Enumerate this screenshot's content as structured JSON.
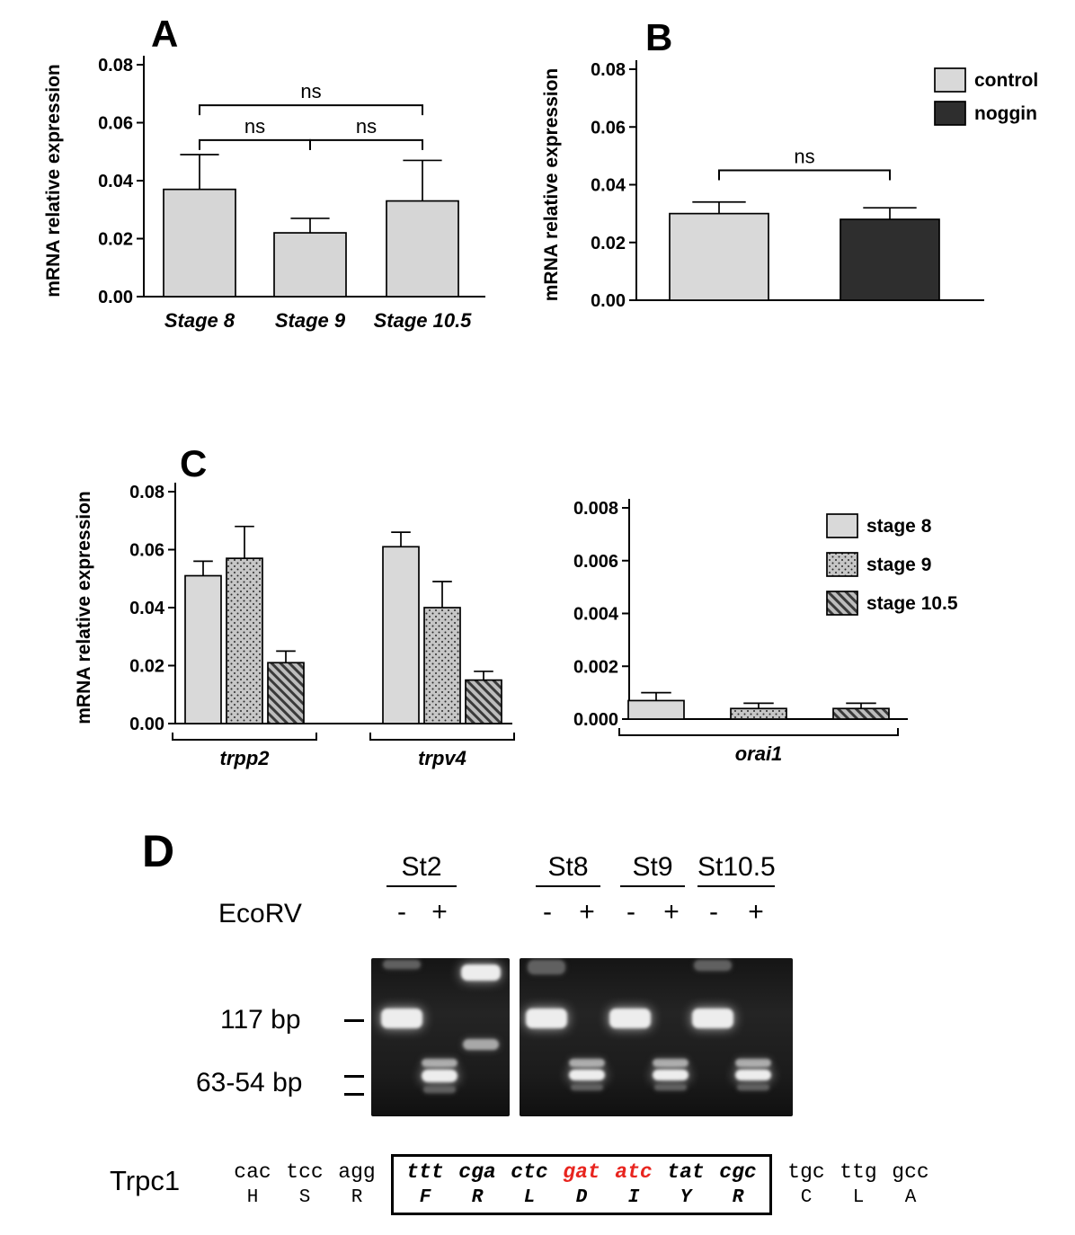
{
  "panels": {
    "a_label": "A",
    "b_label": "B",
    "c_label": "C",
    "d_label": "D"
  },
  "gel": {
    "stages": [
      "St2",
      "St8",
      "St9",
      "St10.5"
    ],
    "enzyme": "EcoRV",
    "signs": [
      "-",
      "+"
    ],
    "markers": {
      "m1": "117 bp",
      "m2": "63-54 bp"
    }
  },
  "sequence": {
    "gene": "Trpc1",
    "codons": [
      {
        "text": "cac",
        "aa": "H",
        "style": "plain"
      },
      {
        "text": "tcc",
        "aa": "S",
        "style": "plain"
      },
      {
        "text": "agg",
        "aa": "R",
        "style": "plain"
      },
      {
        "text": "ttt",
        "aa": "F",
        "style": "boxed"
      },
      {
        "text": "cga",
        "aa": "R",
        "style": "boxed"
      },
      {
        "text": "ctc",
        "aa": "L",
        "style": "boxed"
      },
      {
        "text": "gat",
        "aa": "D",
        "style": "boxed-red"
      },
      {
        "text": "atc",
        "aa": "I",
        "style": "boxed-red"
      },
      {
        "text": "tat",
        "aa": "Y",
        "style": "boxed"
      },
      {
        "text": "cgc",
        "aa": "R",
        "style": "boxed"
      },
      {
        "text": "tgc",
        "aa": "C",
        "style": "plain"
      },
      {
        "text": "ttg",
        "aa": "L",
        "style": "plain"
      },
      {
        "text": "gcc",
        "aa": "A",
        "style": "plain"
      }
    ]
  },
  "chart_data": [
    {
      "id": "panelA",
      "type": "bar",
      "panel": "A",
      "ylabel": "mRNA relative expression",
      "ylim": [
        0,
        0.08
      ],
      "yticks": [
        "0.00",
        "0.02",
        "0.04",
        "0.06",
        "0.08"
      ],
      "categories": [
        "Stage 8",
        "Stage 9",
        "Stage 10.5"
      ],
      "values": [
        0.037,
        0.022,
        0.033
      ],
      "errors": [
        0.012,
        0.005,
        0.014
      ],
      "bar_fill": "#d6d6d6",
      "annotations": [
        {
          "type": "bracket",
          "from": 0,
          "to": 1,
          "label": "ns",
          "y": 0.054
        },
        {
          "type": "bracket",
          "from": 1,
          "to": 2,
          "label": "ns",
          "y": 0.054
        },
        {
          "type": "bracket",
          "from": 0,
          "to": 2,
          "label": "ns",
          "y": 0.066
        }
      ]
    },
    {
      "id": "panelB",
      "type": "bar",
      "panel": "B",
      "ylabel": "mRNA relative expression",
      "ylim": [
        0,
        0.08
      ],
      "yticks": [
        "0.00",
        "0.02",
        "0.04",
        "0.06",
        "0.08"
      ],
      "categories": [
        "control",
        "noggin"
      ],
      "show_category_labels": false,
      "values": [
        0.03,
        0.028
      ],
      "errors": [
        0.004,
        0.004
      ],
      "bar_fills": [
        "#d9d9d9",
        "#2e2e2e"
      ],
      "legend": [
        {
          "label": "control",
          "fill": "#d9d9d9"
        },
        {
          "label": "noggin",
          "fill": "#2e2e2e"
        }
      ],
      "annotations": [
        {
          "type": "bracket",
          "from": 0,
          "to": 1,
          "label": "ns",
          "y": 0.045
        }
      ]
    },
    {
      "id": "panelC_left",
      "type": "grouped-bar",
      "panel": "C",
      "ylabel": "mRNA relative expression",
      "ylim": [
        0,
        0.08
      ],
      "yticks": [
        "0.00",
        "0.02",
        "0.04",
        "0.06",
        "0.08"
      ],
      "groups": [
        "trpp2",
        "trpv4"
      ],
      "series": [
        {
          "name": "stage 8",
          "pattern": "solid",
          "values": [
            0.051,
            0.061
          ],
          "errors": [
            0.005,
            0.005
          ]
        },
        {
          "name": "stage 9",
          "pattern": "dots",
          "values": [
            0.057,
            0.04
          ],
          "errors": [
            0.011,
            0.009
          ]
        },
        {
          "name": "stage 10.5",
          "pattern": "hatch",
          "values": [
            0.021,
            0.015
          ],
          "errors": [
            0.004,
            0.003
          ]
        }
      ]
    },
    {
      "id": "panelC_right",
      "type": "grouped-bar",
      "panel": "C",
      "ylabel": "",
      "ylim": [
        0,
        0.008
      ],
      "yticks": [
        "0.000",
        "0.002",
        "0.004",
        "0.006",
        "0.008"
      ],
      "groups": [
        "orai1"
      ],
      "series": [
        {
          "name": "stage 8",
          "pattern": "solid",
          "values": [
            0.0007
          ],
          "errors": [
            0.0003
          ]
        },
        {
          "name": "stage 9",
          "pattern": "dots",
          "values": [
            0.0004
          ],
          "errors": [
            0.0002
          ]
        },
        {
          "name": "stage 10.5",
          "pattern": "hatch",
          "values": [
            0.0004
          ],
          "errors": [
            0.0002
          ]
        }
      ],
      "legend": [
        {
          "label": "stage 8",
          "pattern": "solid"
        },
        {
          "label": "stage 9",
          "pattern": "dots"
        },
        {
          "label": "stage 10.5",
          "pattern": "hatch"
        }
      ]
    }
  ]
}
